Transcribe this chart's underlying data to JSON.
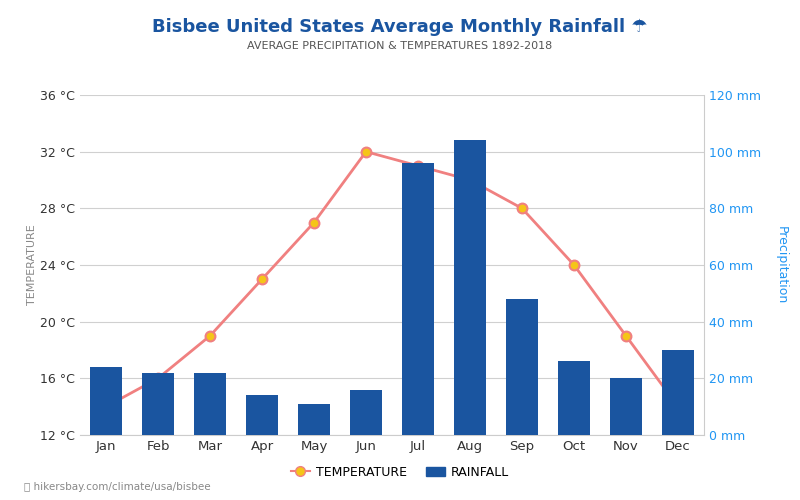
{
  "title": "Bisbee United States Average Monthly Rainfall ☂",
  "subtitle": "AVERAGE PRECIPITATION & TEMPERATURES 1892-2018",
  "months": [
    "Jan",
    "Feb",
    "Mar",
    "Apr",
    "May",
    "Jun",
    "Jul",
    "Aug",
    "Sep",
    "Oct",
    "Nov",
    "Dec"
  ],
  "temperature_c": [
    14,
    16,
    19,
    23,
    27,
    32,
    31,
    30,
    28,
    24,
    19,
    14
  ],
  "rainfall_mm": [
    24,
    22,
    22,
    14,
    11,
    16,
    96,
    104,
    48,
    26,
    20,
    30
  ],
  "temp_ylim": [
    12,
    36
  ],
  "rain_ylim": [
    0,
    120
  ],
  "temp_yticks": [
    12,
    16,
    20,
    24,
    28,
    32,
    36
  ],
  "rain_yticks": [
    0,
    20,
    40,
    60,
    80,
    100,
    120
  ],
  "bar_color": "#1a55a0",
  "line_color": "#f08080",
  "marker_face_color": "#f5c518",
  "marker_edge_color": "#f08080",
  "title_color": "#1a55a0",
  "subtitle_color": "#555555",
  "axis_label_color": "#2196f3",
  "tick_color_right": "#2196f3",
  "tick_color_left": "#333333",
  "ylabel_left": "TEMPERATURE",
  "ylabel_right": "Precipitation",
  "watermark": "hikersbay.com/climate/usa/bisbee",
  "legend_temp": "TEMPERATURE",
  "legend_rain": "RAINFALL",
  "bg_color": "#ffffff"
}
